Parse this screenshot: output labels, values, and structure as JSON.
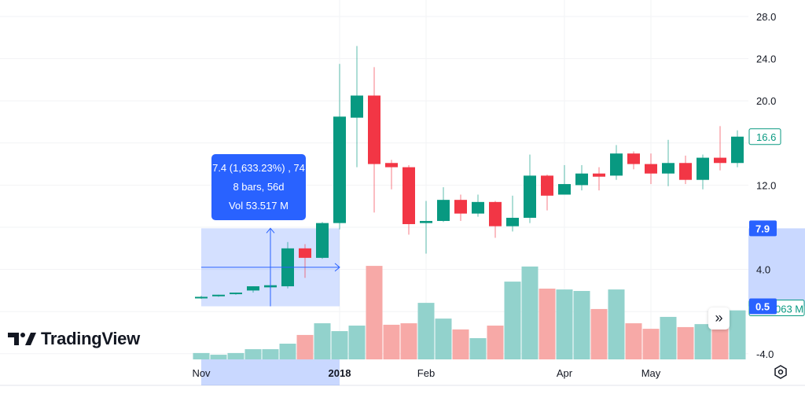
{
  "chart_data": {
    "type": "candlestick",
    "price_axis": {
      "ticks": [
        28.0,
        24.0,
        20.0,
        16.0,
        12.0,
        8.0,
        4.0,
        0.0,
        -4.0
      ],
      "tick_labels": [
        "28.0",
        "24.0",
        "20.0",
        "",
        "12.0",
        "",
        "4.0",
        "",
        "-4.0"
      ],
      "ylim": [
        -4.6,
        29.5
      ]
    },
    "time_axis": {
      "labels": [
        {
          "text": "Nov",
          "bar": 0
        },
        {
          "text": "2018",
          "bar": 8
        },
        {
          "text": "Feb",
          "bar": 13
        },
        {
          "text": "Apr",
          "bar": 21
        },
        {
          "text": "May",
          "bar": 26
        }
      ]
    },
    "grid": true,
    "candles": [
      [
        1.4,
        1.5,
        1.2,
        1.4
      ],
      [
        1.5,
        1.6,
        1.4,
        1.6
      ],
      [
        1.7,
        1.8,
        1.6,
        1.8
      ],
      [
        2.0,
        2.4,
        1.8,
        2.4
      ],
      [
        2.3,
        2.5,
        2.2,
        2.5
      ],
      [
        2.4,
        6.6,
        2.2,
        6.0
      ],
      [
        6.0,
        6.4,
        3.2,
        5.1
      ],
      [
        5.1,
        8.5,
        5.0,
        8.4
      ],
      [
        8.4,
        23.5,
        7.8,
        18.5
      ],
      [
        18.4,
        25.2,
        13.7,
        20.5
      ],
      [
        20.5,
        23.2,
        9.4,
        14.0
      ],
      [
        14.1,
        14.4,
        11.6,
        13.7
      ],
      [
        13.7,
        13.9,
        7.3,
        8.3
      ],
      [
        8.4,
        10.5,
        5.5,
        8.6
      ],
      [
        8.6,
        11.8,
        8.5,
        10.6
      ],
      [
        10.6,
        11.1,
        8.6,
        9.3
      ],
      [
        9.3,
        11.1,
        9.0,
        10.4
      ],
      [
        10.4,
        10.5,
        7.0,
        8.1
      ],
      [
        8.1,
        11.0,
        7.6,
        8.9
      ],
      [
        8.9,
        14.9,
        8.4,
        12.9
      ],
      [
        12.9,
        13.0,
        9.6,
        11.0
      ],
      [
        11.1,
        13.9,
        11.1,
        12.1
      ],
      [
        12.0,
        13.9,
        11.5,
        13.1
      ],
      [
        13.1,
        13.7,
        11.5,
        12.8
      ],
      [
        12.9,
        15.8,
        12.5,
        15.0
      ],
      [
        15.0,
        15.2,
        13.5,
        14.0
      ],
      [
        14.0,
        15.0,
        12.1,
        13.1
      ],
      [
        13.1,
        16.3,
        11.9,
        14.1
      ],
      [
        14.1,
        14.8,
        12.1,
        12.5
      ],
      [
        12.5,
        14.9,
        11.6,
        14.6
      ],
      [
        14.6,
        17.6,
        13.4,
        14.1
      ],
      [
        14.1,
        17.2,
        13.7,
        16.6
      ]
    ],
    "candle_format": "open,high,low,close",
    "volume_millions": [
      3.0,
      2.2,
      3.0,
      4.8,
      4.8,
      7.4,
      11.5,
      17.0,
      13.3,
      15.9,
      44.0,
      16.3,
      17.0,
      26.6,
      19.2,
      14.1,
      10.0,
      15.9,
      36.6,
      43.7,
      33.3,
      32.9,
      32.2,
      23.7,
      32.9,
      17.0,
      14.4,
      20.0,
      15.2,
      16.6,
      17.4,
      23.063
    ],
    "last_price": "16.6",
    "last_volume_label": "063 M",
    "colors": {
      "up": "#089981",
      "down": "#f23645",
      "vol_up": "#92d2cc",
      "vol_down": "#f7a9a7",
      "measure": "#2962ff"
    }
  },
  "measure": {
    "line1": "7.4 (1,633.23%) , 74",
    "line2": "8 bars, 56d",
    "line3": "Vol 53.517 M",
    "from_bar": 0,
    "to_bar": 8,
    "low": 0.5,
    "high": 7.9,
    "low_label": "0.5",
    "high_label": "7.9"
  },
  "branding": {
    "name": "TradingView"
  },
  "controls": {
    "scroll_forward": "»"
  }
}
